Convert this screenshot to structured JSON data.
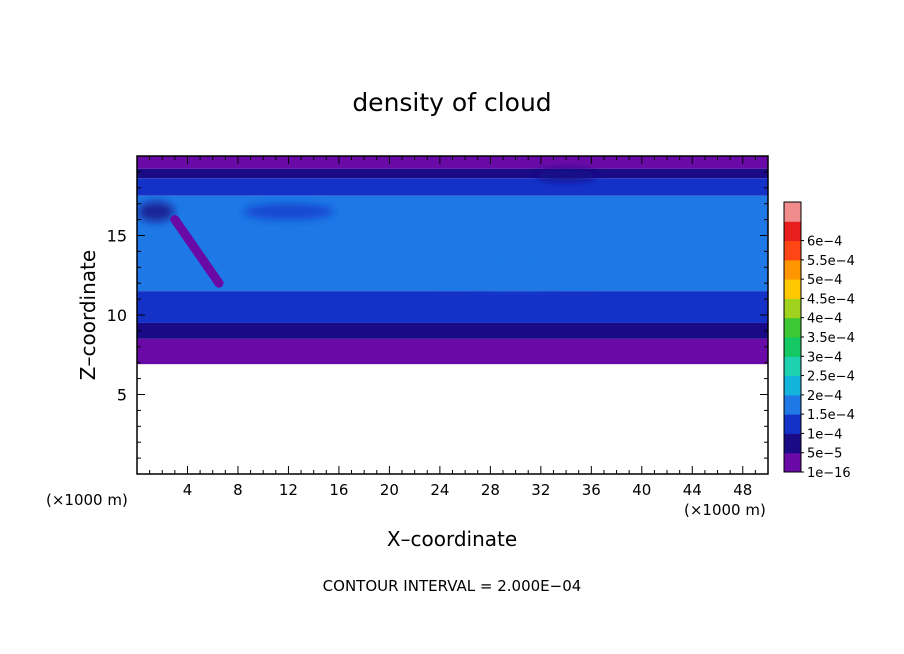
{
  "chart_data": {
    "type": "heatmap",
    "title": "density of cloud",
    "xlabel": "X–coordinate",
    "ylabel": "Z–coordinate",
    "x_unit_label": "(×1000 m)",
    "x_unit_label_right": "(×1000 m)",
    "x_ticks": [
      "4",
      "8",
      "12",
      "16",
      "20",
      "24",
      "28",
      "32",
      "36",
      "40",
      "44",
      "48"
    ],
    "y_ticks": [
      "5",
      "10",
      "15"
    ],
    "xlim": [
      0,
      50
    ],
    "ylim": [
      0,
      20
    ],
    "grid": false,
    "colorbar": {
      "levels": [
        "1e−16",
        "5e−5",
        "1e−4",
        "1.5e−4",
        "2e−4",
        "2.5e−4",
        "3e−4",
        "3.5e−4",
        "4e−4",
        "4.5e−4",
        "5e−4",
        "5.5e−4",
        "6e−4"
      ],
      "colors": [
        "#6a0aa6",
        "#1a0a86",
        "#1432c8",
        "#1e78e6",
        "#12b4dc",
        "#1ed2b0",
        "#14c864",
        "#3cc832",
        "#a0d21e",
        "#ffc800",
        "#ff9600",
        "#ff4614",
        "#e61e1e",
        "#f08c8c"
      ]
    },
    "cloud_region": {
      "z_bottom": 6.9,
      "z_top": 20
    },
    "field": [
      {
        "x": 0,
        "x2": 50,
        "z": 19.2,
        "z2": 20,
        "value": "1e−16"
      },
      {
        "x": 0,
        "x2": 50,
        "z": 18.6,
        "z2": 19.2,
        "value": "5e−5"
      },
      {
        "x": 0,
        "x2": 50,
        "z": 17.5,
        "z2": 18.6,
        "value": "1e−4"
      },
      {
        "x": 0,
        "x2": 50,
        "z": 11.5,
        "z2": 17.5,
        "value": "1.5e−4"
      },
      {
        "x": 0,
        "x2": 50,
        "z": 9.5,
        "z2": 11.5,
        "value": "1e−4"
      },
      {
        "x": 0,
        "x2": 50,
        "z": 8.5,
        "z2": 9.5,
        "value": "5e−5"
      },
      {
        "x": 0,
        "x2": 50,
        "z": 6.9,
        "z2": 8.5,
        "value": "1e−16"
      }
    ],
    "annotation": "CONTOUR INTERVAL = 2.000E−04"
  }
}
